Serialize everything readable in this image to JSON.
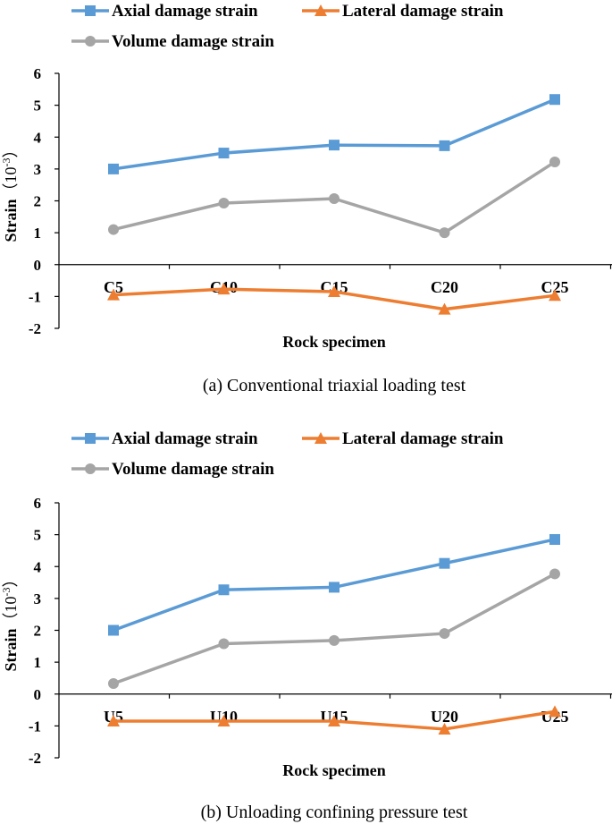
{
  "chart_data": [
    {
      "type": "line",
      "panel": "a",
      "caption": "(a) Conventional triaxial loading test",
      "categories": [
        "C5",
        "C10",
        "C15",
        "C20",
        "C25"
      ],
      "series": [
        {
          "name": "Axial damage strain",
          "color": "#5B9BD5",
          "marker": "square",
          "values": [
            3.0,
            3.5,
            3.75,
            3.73,
            5.18
          ]
        },
        {
          "name": "Lateral damage strain",
          "color": "#ED7D31",
          "marker": "triangle",
          "values": [
            -0.95,
            -0.77,
            -0.85,
            -1.4,
            -0.97
          ]
        },
        {
          "name": "Volume damage strain",
          "color": "#A5A5A5",
          "marker": "circle",
          "values": [
            1.1,
            1.93,
            2.07,
            1.0,
            3.22
          ]
        }
      ],
      "ylabel_main": "Strain",
      "ylabel_unit": "（10",
      "ylabel_exp": "-3",
      "ylabel_close": "）",
      "xlabel": "Rock specimen",
      "yticks": [
        -2,
        -1,
        0,
        1,
        2,
        3,
        4,
        5,
        6
      ],
      "ylim": [
        -2,
        6
      ],
      "legend": "top"
    },
    {
      "type": "line",
      "panel": "b",
      "caption": "(b) Unloading confining pressure test",
      "categories": [
        "U5",
        "U10",
        "U15",
        "U20",
        "U25"
      ],
      "series": [
        {
          "name": "Axial damage strain",
          "color": "#5B9BD5",
          "marker": "square",
          "values": [
            2.0,
            3.27,
            3.35,
            4.1,
            4.85
          ]
        },
        {
          "name": "Lateral damage strain",
          "color": "#ED7D31",
          "marker": "triangle",
          "values": [
            -0.85,
            -0.85,
            -0.85,
            -1.1,
            -0.55
          ]
        },
        {
          "name": "Volume damage strain",
          "color": "#A5A5A5",
          "marker": "circle",
          "values": [
            0.33,
            1.58,
            1.68,
            1.9,
            3.77
          ]
        }
      ],
      "ylabel_main": "Strain",
      "ylabel_unit": "（10",
      "ylabel_exp": "-3",
      "ylabel_close": "）",
      "xlabel": "Rock specimen",
      "yticks": [
        -2,
        -1,
        0,
        1,
        2,
        3,
        4,
        5,
        6
      ],
      "ylim": [
        -2,
        6
      ],
      "legend": "top"
    }
  ]
}
